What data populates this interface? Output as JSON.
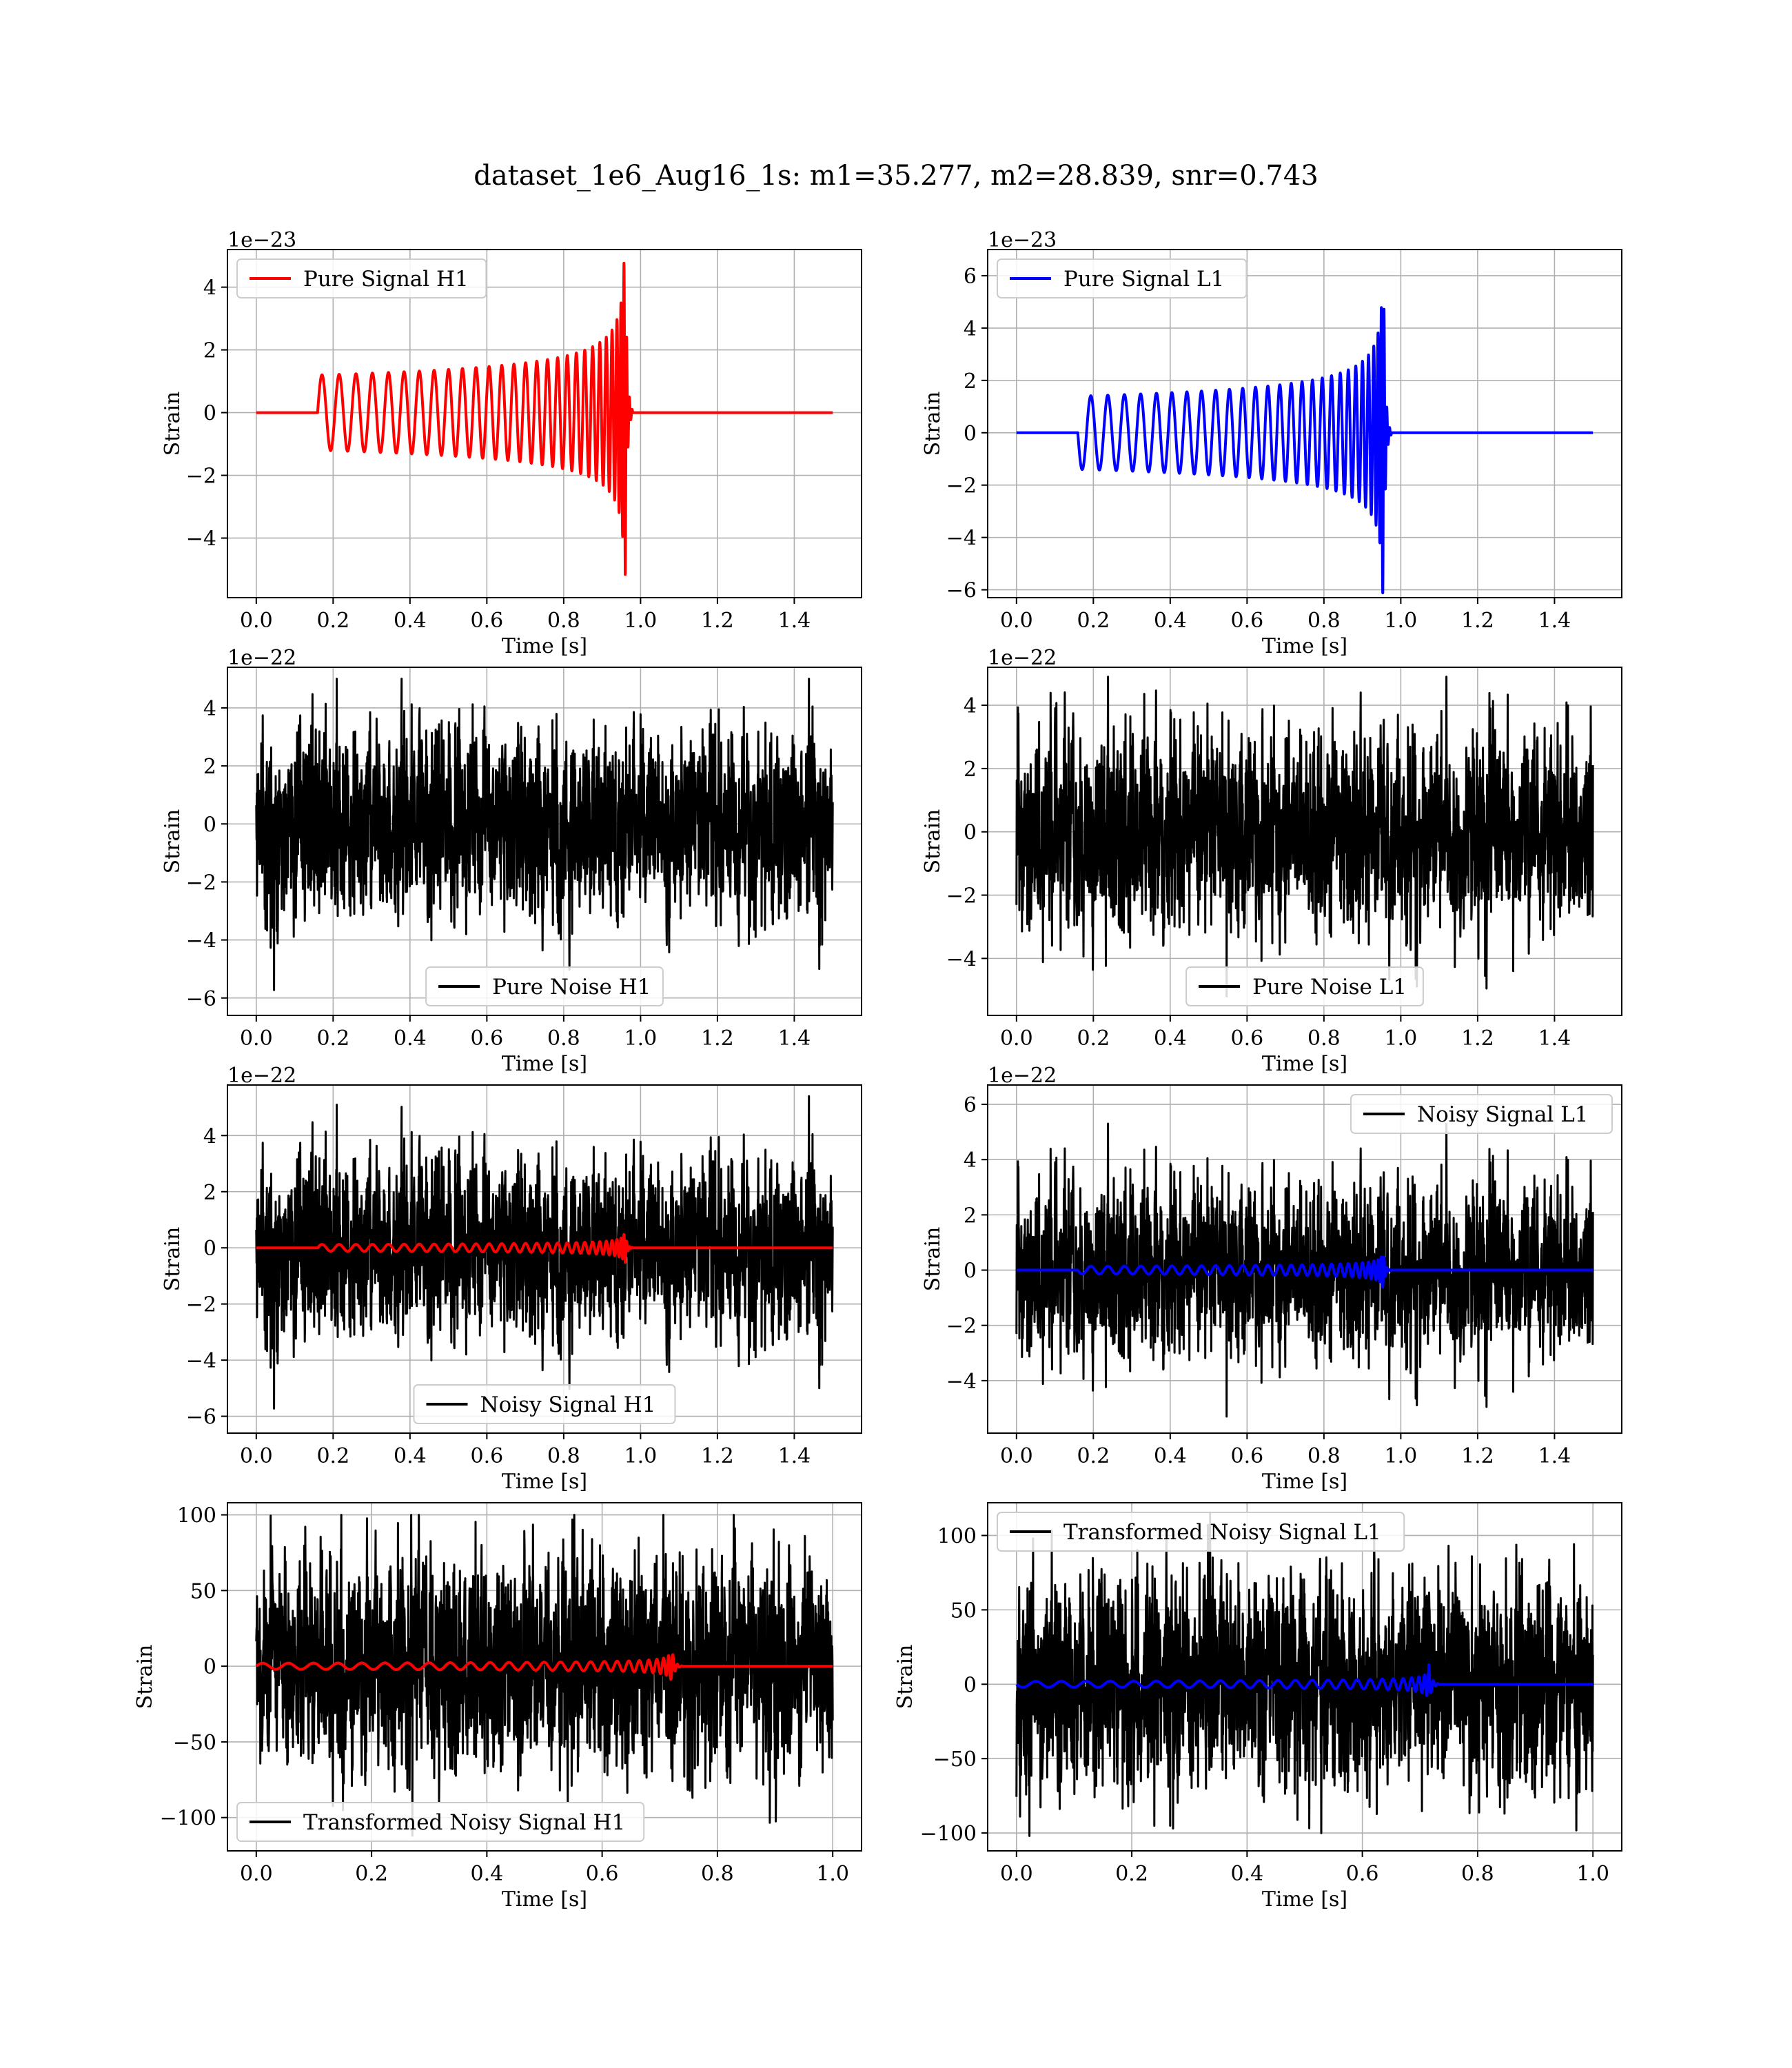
{
  "suptitle": "dataset_1e6_Aug16_1s: m1=35.277, m2=28.839, snr=0.743",
  "colors": {
    "red": "#ff0000",
    "blue": "#0000ff",
    "black": "#000000",
    "grid": "#b0b0b0"
  },
  "chart_data": [
    {
      "id": "pure-signal-h1",
      "type": "line",
      "xlabel": "Time [s]",
      "ylabel": "Strain",
      "offset_text": "1e−23",
      "xlim": [
        -0.075,
        1.575
      ],
      "ylim": [
        -5.9,
        5.2
      ],
      "xticks": [
        0.0,
        0.2,
        0.4,
        0.6,
        0.8,
        1.0,
        1.2,
        1.4
      ],
      "xticklabels": [
        "0.0",
        "0.2",
        "0.4",
        "0.6",
        "0.8",
        "1.0",
        "1.2",
        "1.4"
      ],
      "yticks": [
        -4,
        -2,
        0,
        2,
        4
      ],
      "yticklabels": [
        "−4",
        "−2",
        "0",
        "2",
        "4"
      ],
      "legend": {
        "loc": "upper-left",
        "entries": [
          {
            "label": "Pure Signal H1",
            "color": "#ff0000"
          }
        ]
      },
      "series": [
        {
          "name": "Pure Signal H1",
          "kind": "chirp",
          "color": "#ff0000",
          "width": 4,
          "t0": 0.16,
          "tc": 0.96,
          "tmax": 1.5,
          "A0": 1.2,
          "Apeak": 5.5,
          "f0": 22,
          "fpeak": 140,
          "flip": false
        }
      ]
    },
    {
      "id": "pure-signal-l1",
      "type": "line",
      "xlabel": "Time [s]",
      "ylabel": "Strain",
      "offset_text": "1e−23",
      "xlim": [
        -0.075,
        1.575
      ],
      "ylim": [
        -6.3,
        7.0
      ],
      "xticks": [
        0.0,
        0.2,
        0.4,
        0.6,
        0.8,
        1.0,
        1.2,
        1.4
      ],
      "xticklabels": [
        "0.0",
        "0.2",
        "0.4",
        "0.6",
        "0.8",
        "1.0",
        "1.2",
        "1.4"
      ],
      "yticks": [
        -6,
        -4,
        -2,
        0,
        2,
        4,
        6
      ],
      "yticklabels": [
        "−6",
        "−4",
        "−2",
        "0",
        "2",
        "4",
        "6"
      ],
      "legend": {
        "loc": "upper-left",
        "entries": [
          {
            "label": "Pure Signal L1",
            "color": "#0000ff"
          }
        ]
      },
      "series": [
        {
          "name": "Pure Signal L1",
          "kind": "chirp",
          "color": "#0000ff",
          "width": 4,
          "t0": 0.16,
          "tc": 0.955,
          "tmax": 1.5,
          "A0": 1.4,
          "Apeak": 6.5,
          "f0": 22,
          "fpeak": 140,
          "flip": true
        }
      ]
    },
    {
      "id": "pure-noise-h1",
      "type": "line",
      "xlabel": "Time [s]",
      "ylabel": "Strain",
      "offset_text": "1e−22",
      "xlim": [
        -0.075,
        1.575
      ],
      "ylim": [
        -6.6,
        5.4
      ],
      "xticks": [
        0.0,
        0.2,
        0.4,
        0.6,
        0.8,
        1.0,
        1.2,
        1.4
      ],
      "xticklabels": [
        "0.0",
        "0.2",
        "0.4",
        "0.6",
        "0.8",
        "1.0",
        "1.2",
        "1.4"
      ],
      "yticks": [
        -6,
        -4,
        -2,
        0,
        2,
        4
      ],
      "yticklabels": [
        "−6",
        "−4",
        "−2",
        "0",
        "2",
        "4"
      ],
      "legend": {
        "loc": "lower-center",
        "entries": [
          {
            "label": "Pure Noise H1",
            "color": "#000000"
          }
        ]
      },
      "series": [
        {
          "name": "Pure Noise H1",
          "kind": "noise",
          "color": "#000000",
          "width": 3,
          "tmax": 1.5,
          "seed": 11,
          "amp": 1.35,
          "clip": [
            -6.2,
            5.0
          ]
        }
      ]
    },
    {
      "id": "pure-noise-l1",
      "type": "line",
      "xlabel": "Time [s]",
      "ylabel": "Strain",
      "offset_text": "1e−22",
      "xlim": [
        -0.075,
        1.575
      ],
      "ylim": [
        -5.8,
        5.2
      ],
      "xticks": [
        0.0,
        0.2,
        0.4,
        0.6,
        0.8,
        1.0,
        1.2,
        1.4
      ],
      "xticklabels": [
        "0.0",
        "0.2",
        "0.4",
        "0.6",
        "0.8",
        "1.0",
        "1.2",
        "1.4"
      ],
      "yticks": [
        -4,
        -2,
        0,
        2,
        4
      ],
      "yticklabels": [
        "−4",
        "−2",
        "0",
        "2",
        "4"
      ],
      "legend": {
        "loc": "lower-center",
        "entries": [
          {
            "label": "Pure Noise L1",
            "color": "#000000"
          }
        ]
      },
      "series": [
        {
          "name": "Pure Noise L1",
          "kind": "noise",
          "color": "#000000",
          "width": 3,
          "tmax": 1.5,
          "seed": 23,
          "amp": 1.3,
          "clip": [
            -5.2,
            4.9
          ]
        }
      ]
    },
    {
      "id": "noisy-signal-h1",
      "type": "line",
      "xlabel": "Time [s]",
      "ylabel": "Strain",
      "offset_text": "1e−22",
      "xlim": [
        -0.075,
        1.575
      ],
      "ylim": [
        -6.6,
        5.8
      ],
      "xticks": [
        0.0,
        0.2,
        0.4,
        0.6,
        0.8,
        1.0,
        1.2,
        1.4
      ],
      "xticklabels": [
        "0.0",
        "0.2",
        "0.4",
        "0.6",
        "0.8",
        "1.0",
        "1.2",
        "1.4"
      ],
      "yticks": [
        -6,
        -4,
        -2,
        0,
        2,
        4
      ],
      "yticklabels": [
        "−6",
        "−4",
        "−2",
        "0",
        "2",
        "4"
      ],
      "legend": {
        "loc": "lower-center",
        "entries": [
          {
            "label": "Noisy Signal H1",
            "color": "#000000"
          }
        ]
      },
      "series": [
        {
          "name": "Noisy Signal H1",
          "kind": "noise",
          "color": "#000000",
          "width": 3,
          "tmax": 1.5,
          "seed": 11,
          "amp": 1.35,
          "clip": [
            -6.2,
            5.4
          ]
        },
        {
          "kind": "chirp",
          "color": "#ff0000",
          "width": 4,
          "t0": 0.16,
          "tc": 0.96,
          "tmax": 1.5,
          "A0": 0.12,
          "Apeak": 0.55,
          "f0": 22,
          "fpeak": 140,
          "flip": false
        }
      ]
    },
    {
      "id": "noisy-signal-l1",
      "type": "line",
      "xlabel": "Time [s]",
      "ylabel": "Strain",
      "offset_text": "1e−22",
      "xlim": [
        -0.075,
        1.575
      ],
      "ylim": [
        -5.9,
        6.7
      ],
      "xticks": [
        0.0,
        0.2,
        0.4,
        0.6,
        0.8,
        1.0,
        1.2,
        1.4
      ],
      "xticklabels": [
        "0.0",
        "0.2",
        "0.4",
        "0.6",
        "0.8",
        "1.0",
        "1.2",
        "1.4"
      ],
      "yticks": [
        -4,
        -2,
        0,
        2,
        4,
        6
      ],
      "yticklabels": [
        "−4",
        "−2",
        "0",
        "2",
        "4",
        "6"
      ],
      "legend": {
        "loc": "upper-right",
        "entries": [
          {
            "label": "Noisy Signal L1",
            "color": "#000000"
          }
        ]
      },
      "series": [
        {
          "name": "Noisy Signal L1",
          "kind": "noise",
          "color": "#000000",
          "width": 3,
          "tmax": 1.5,
          "seed": 23,
          "amp": 1.3,
          "clip": [
            -5.3,
            5.3
          ]
        },
        {
          "kind": "chirp",
          "color": "#0000ff",
          "width": 4,
          "t0": 0.16,
          "tc": 0.955,
          "tmax": 1.5,
          "A0": 0.14,
          "Apeak": 0.65,
          "f0": 22,
          "fpeak": 140,
          "flip": true
        }
      ]
    },
    {
      "id": "transformed-noisy-signal-h1",
      "type": "line",
      "xlabel": "Time [s]",
      "ylabel": "Strain",
      "offset_text": "",
      "xlim": [
        -0.05,
        1.05
      ],
      "ylim": [
        -122,
        108
      ],
      "xticks": [
        0.0,
        0.2,
        0.4,
        0.6,
        0.8,
        1.0
      ],
      "xticklabels": [
        "0.0",
        "0.2",
        "0.4",
        "0.6",
        "0.8",
        "1.0"
      ],
      "yticks": [
        -100,
        -50,
        0,
        50,
        100
      ],
      "yticklabels": [
        "−100",
        "−50",
        "0",
        "50",
        "100"
      ],
      "legend": {
        "loc": "lower-left",
        "entries": [
          {
            "label": "Transformed Noisy Signal H1",
            "color": "#000000"
          }
        ]
      },
      "series": [
        {
          "name": "Transformed Noisy Signal H1",
          "kind": "noise",
          "color": "#000000",
          "width": 3,
          "tmax": 1.0,
          "seed": 37,
          "amp": 30,
          "clip": [
            -112,
            100
          ]
        },
        {
          "kind": "chirp",
          "color": "#ff0000",
          "width": 4,
          "t0": 0.0,
          "tc": 0.72,
          "tmax": 1.0,
          "A0": 2,
          "Apeak": 14,
          "f0": 22,
          "fpeak": 130,
          "flip": false
        }
      ]
    },
    {
      "id": "transformed-noisy-signal-l1",
      "type": "line",
      "xlabel": "Time [s]",
      "ylabel": "Strain",
      "offset_text": "",
      "xlim": [
        -0.05,
        1.05
      ],
      "ylim": [
        -112,
        122
      ],
      "xticks": [
        0.0,
        0.2,
        0.4,
        0.6,
        0.8,
        1.0
      ],
      "xticklabels": [
        "0.0",
        "0.2",
        "0.4",
        "0.6",
        "0.8",
        "1.0"
      ],
      "yticks": [
        -100,
        -50,
        0,
        50,
        100
      ],
      "yticklabels": [
        "−100",
        "−50",
        "0",
        "50",
        "100"
      ],
      "legend": {
        "loc": "upper-left",
        "entries": [
          {
            "label": "Transformed Noisy Signal L1",
            "color": "#000000"
          }
        ]
      },
      "series": [
        {
          "name": "Transformed Noisy Signal L1",
          "kind": "noise",
          "color": "#000000",
          "width": 3,
          "tmax": 1.0,
          "seed": 51,
          "amp": 30,
          "clip": [
            -102,
            116
          ]
        },
        {
          "kind": "chirp",
          "color": "#0000ff",
          "width": 4,
          "t0": 0.0,
          "tc": 0.715,
          "tmax": 1.0,
          "A0": 2,
          "Apeak": 14,
          "f0": 22,
          "fpeak": 130,
          "flip": true
        }
      ]
    }
  ]
}
